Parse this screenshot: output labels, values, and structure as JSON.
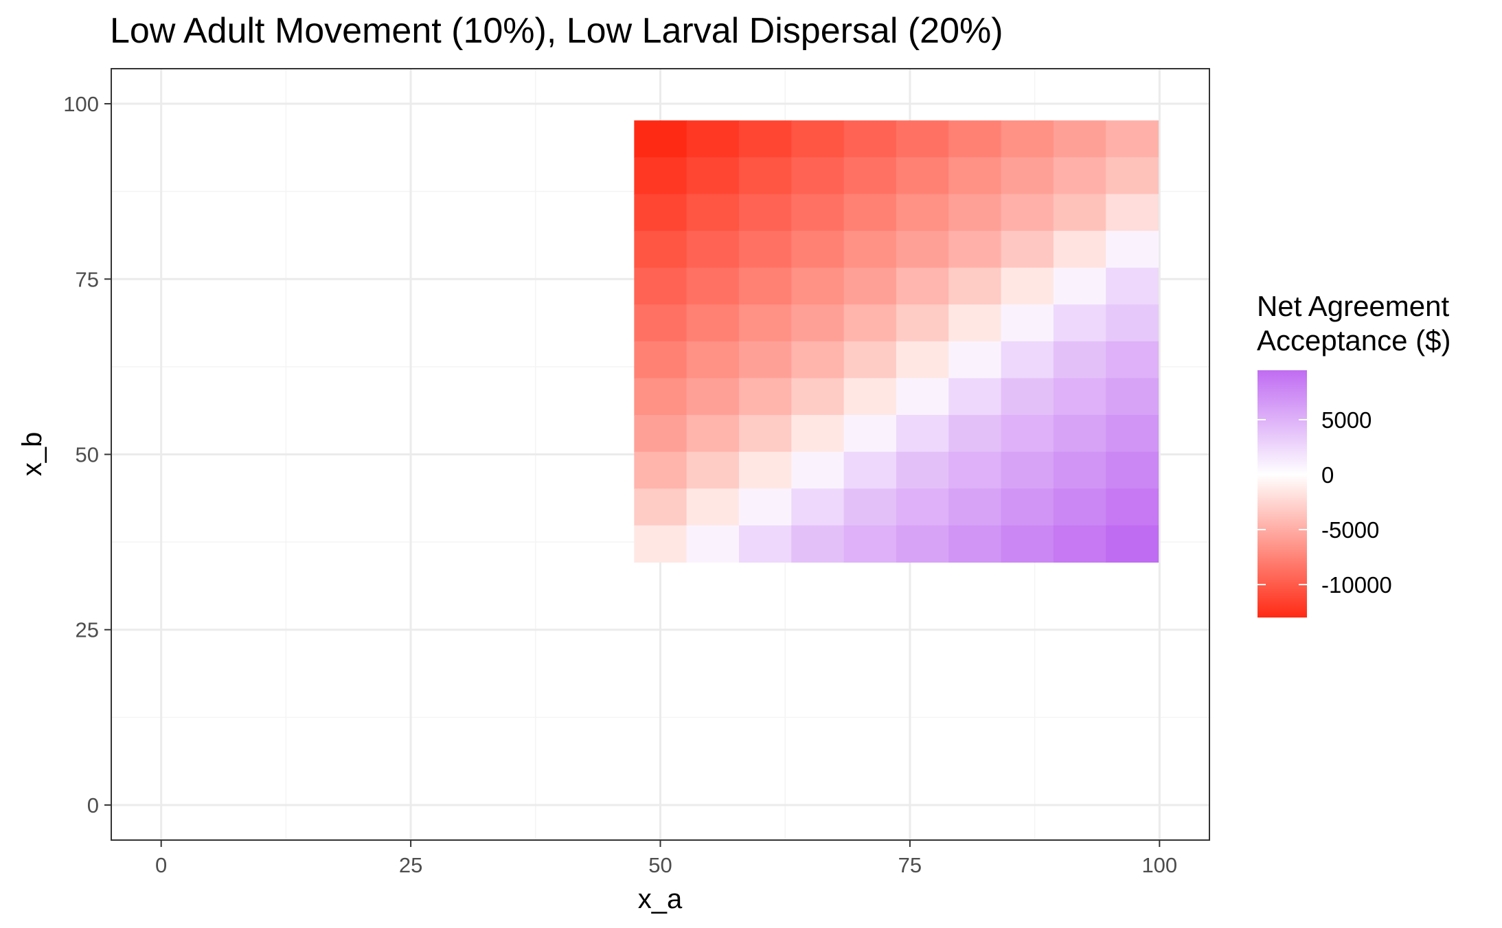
{
  "chart_data": {
    "type": "heatmap",
    "title": "Low Adult Movement (10%), Low Larval Dispersal (20%)",
    "xlabel": "x_a",
    "ylabel": "x_b",
    "xlim": [
      -5,
      105
    ],
    "ylim": [
      -5,
      105
    ],
    "x_ticks": [
      0,
      25,
      50,
      75,
      100
    ],
    "y_ticks": [
      0,
      25,
      50,
      75,
      100
    ],
    "grid": true,
    "x": [
      50,
      55.25,
      60.5,
      65.75,
      71,
      76.25,
      81.5,
      86.75,
      92,
      97.25
    ],
    "y": [
      95,
      89.75,
      84.5,
      79.25,
      74,
      68.75,
      63.5,
      58.25,
      53,
      47.75,
      42.5,
      37.25
    ],
    "values": [
      [
        -13000,
        -12000,
        -11000,
        -10000,
        -9000,
        -8000,
        -7000,
        -6000,
        -5000,
        -4000
      ],
      [
        -12000,
        -11000,
        -10000,
        -9000,
        -8000,
        -7000,
        -6000,
        -5000,
        -4000,
        -3000
      ],
      [
        -11000,
        -10000,
        -9000,
        -8000,
        -7000,
        -6000,
        -5000,
        -4000,
        -3000,
        -1500
      ],
      [
        -10000,
        -9000,
        -8000,
        -7000,
        -6000,
        -5000,
        -4000,
        -2700,
        -1200,
        500
      ],
      [
        -9000,
        -8000,
        -7000,
        -6000,
        -5000,
        -3700,
        -2500,
        -1000,
        500,
        2000
      ],
      [
        -8000,
        -7000,
        -6000,
        -5000,
        -3800,
        -2500,
        -1000,
        500,
        2000,
        3000
      ],
      [
        -7000,
        -6000,
        -5000,
        -3800,
        -2500,
        -1000,
        500,
        2000,
        3500,
        4500
      ],
      [
        -6000,
        -5000,
        -3800,
        -2500,
        -1000,
        500,
        2000,
        3500,
        4500,
        5500
      ],
      [
        -5000,
        -3800,
        -2500,
        -1000,
        500,
        2000,
        3500,
        4500,
        5500,
        6500
      ],
      [
        -3800,
        -2500,
        -1000,
        500,
        2000,
        3500,
        4500,
        5500,
        6500,
        7500
      ],
      [
        -2500,
        -1000,
        500,
        2000,
        3500,
        4500,
        5500,
        6500,
        7500,
        8500
      ],
      [
        -1000,
        500,
        2000,
        3500,
        4500,
        5500,
        6500,
        7500,
        8500,
        9500
      ]
    ],
    "legend": {
      "title_lines": [
        "Net Agreement",
        "Acceptance ($)"
      ],
      "breaks": [
        5000,
        0,
        -5000,
        -10000
      ],
      "labels": [
        "5000",
        "0",
        "-5000",
        "-10000"
      ],
      "range": [
        -13000,
        9500
      ],
      "placement": "right"
    },
    "colors": {
      "low": "#ff2a14",
      "mid": "#ffffff",
      "high": "#c06cf2",
      "panel_border": "#333333",
      "grid_major": "#ebebeb",
      "grid_minor": "#f4f4f4",
      "tick_text": "#4d4d4d"
    }
  }
}
